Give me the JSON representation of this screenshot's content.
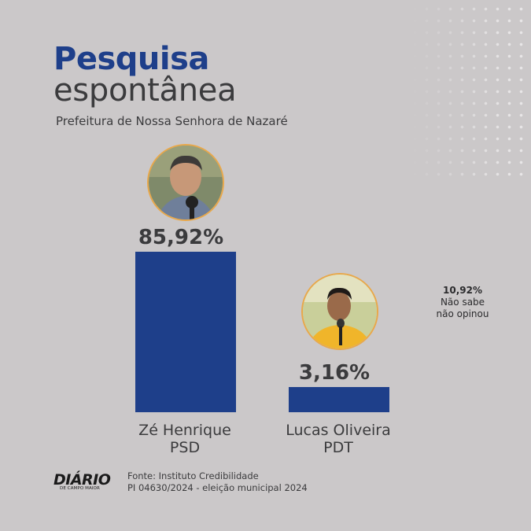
{
  "header": {
    "title_line1": "Pesquisa",
    "title_line2": "espontânea",
    "subtitle": "Prefeitura de Nossa Senhora de Nazaré"
  },
  "chart_data": {
    "type": "bar",
    "categories": [
      "Zé Henrique PSD",
      "Lucas Oliveira PDT"
    ],
    "values": [
      85.92,
      3.16
    ],
    "value_labels": [
      "85,92%",
      "3,16%"
    ],
    "title": "Pesquisa espontânea",
    "subtitle": "Prefeitura de Nossa Senhora de Nazaré",
    "ylim": [
      0,
      85.92
    ],
    "grid": false,
    "bar_color": "#1e3f8a"
  },
  "candidates": [
    {
      "name": "Zé Henrique",
      "party": "PSD",
      "value_label": "85,92%"
    },
    {
      "name": "Lucas Oliveira",
      "party": "PDT",
      "value_label": "3,16%"
    }
  ],
  "other": {
    "value_label": "10,92%",
    "line1": "Não sabe",
    "line2": "não opinou"
  },
  "footer": {
    "logo_main": "DIÁRIO",
    "logo_sub": "DE CAMPO MAIOR",
    "source_line1": "Fonte: Instituto Credibilidade",
    "source_line2": "PI 04630/2024 - eleição municipal 2024"
  },
  "colors": {
    "background": "#cbc8c9",
    "accent": "#1e3f8a",
    "avatar_ring": "#e9a84a"
  }
}
